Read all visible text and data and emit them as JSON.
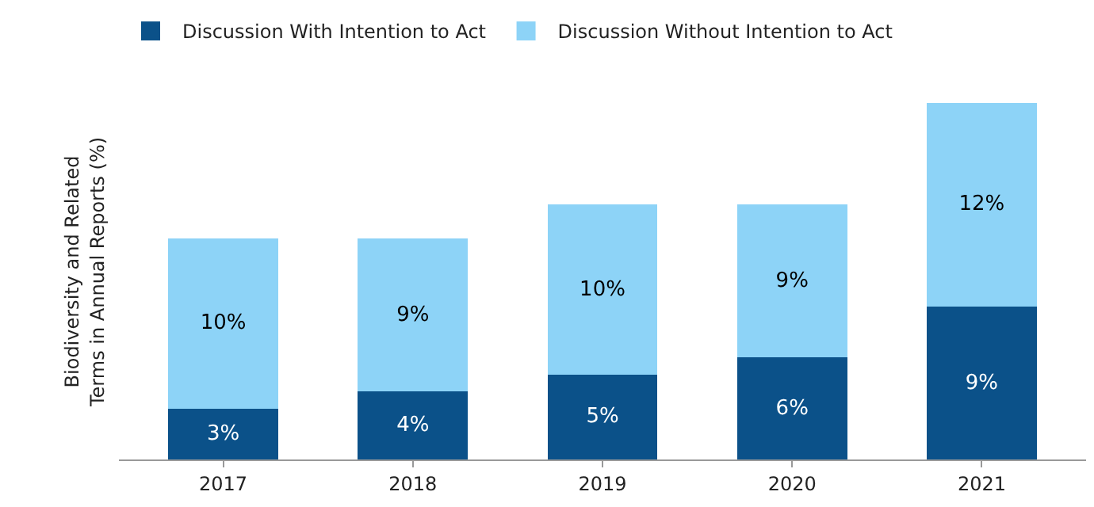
{
  "chart_data": {
    "type": "bar",
    "stacked": true,
    "ylabel": "Biodiversity and Related\nTerms in Annual Reports (%)",
    "categories": [
      "2017",
      "2018",
      "2019",
      "2020",
      "2021"
    ],
    "series": [
      {
        "name": "Discussion With Intention to Act",
        "color": "#0b5189",
        "values": [
          3,
          4,
          5,
          6,
          9
        ],
        "value_labels": [
          "3%",
          "4%",
          "5%",
          "6%",
          "9%"
        ]
      },
      {
        "name": "Discussion Without Intention to Act",
        "color": "#8dd3f7",
        "values": [
          10,
          9,
          10,
          9,
          12
        ],
        "value_labels": [
          "10%",
          "9%",
          "10%",
          "9%",
          "12%"
        ]
      }
    ],
    "tick_labels": "x",
    "legend": "top left"
  }
}
